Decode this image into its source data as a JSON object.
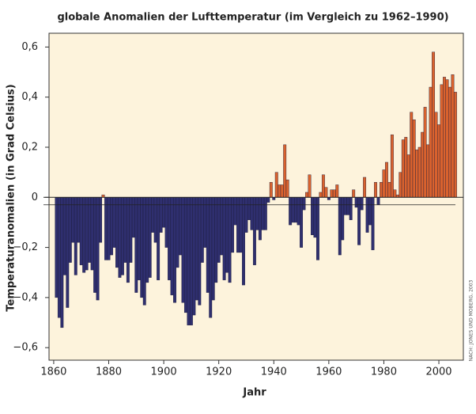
{
  "chart_data": {
    "type": "bar",
    "title": "globale Anomalien der Lufttemperatur (im Vergleich zu 1962–1990)",
    "xlabel": "Jahr",
    "ylabel": "Temperaturanomalien (in Grad Celsius)",
    "source": "NACH: JONES UND MOBERG, 2003",
    "x": [
      1861,
      1862,
      1863,
      1864,
      1865,
      1866,
      1867,
      1868,
      1869,
      1870,
      1871,
      1872,
      1873,
      1874,
      1875,
      1876,
      1877,
      1878,
      1879,
      1880,
      1881,
      1882,
      1883,
      1884,
      1885,
      1886,
      1887,
      1888,
      1889,
      1890,
      1891,
      1892,
      1893,
      1894,
      1895,
      1896,
      1897,
      1898,
      1899,
      1900,
      1901,
      1902,
      1903,
      1904,
      1905,
      1906,
      1907,
      1908,
      1909,
      1910,
      1911,
      1912,
      1913,
      1914,
      1915,
      1916,
      1917,
      1918,
      1919,
      1920,
      1921,
      1922,
      1923,
      1924,
      1925,
      1926,
      1927,
      1928,
      1929,
      1930,
      1931,
      1932,
      1933,
      1934,
      1935,
      1936,
      1937,
      1938,
      1939,
      1940,
      1941,
      1942,
      1943,
      1944,
      1945,
      1946,
      1947,
      1948,
      1949,
      1950,
      1951,
      1952,
      1953,
      1954,
      1955,
      1956,
      1957,
      1958,
      1959,
      1960,
      1961,
      1962,
      1963,
      1964,
      1965,
      1966,
      1967,
      1968,
      1969,
      1970,
      1971,
      1972,
      1973,
      1974,
      1975,
      1976,
      1977,
      1978,
      1979,
      1980,
      1981,
      1982,
      1983,
      1984,
      1985,
      1986,
      1987,
      1988,
      1989,
      1990,
      1991,
      1992,
      1993,
      1994,
      1995,
      1996,
      1997,
      1998,
      1999,
      2000,
      2001,
      2002,
      2003,
      2004,
      2005,
      2006
    ],
    "values": [
      -0.4,
      -0.48,
      -0.52,
      -0.31,
      -0.44,
      -0.26,
      -0.18,
      -0.31,
      -0.18,
      -0.27,
      -0.3,
      -0.29,
      -0.26,
      -0.29,
      -0.38,
      -0.41,
      -0.18,
      0.01,
      -0.25,
      -0.25,
      -0.23,
      -0.2,
      -0.28,
      -0.32,
      -0.31,
      -0.26,
      -0.34,
      -0.26,
      -0.16,
      -0.38,
      -0.33,
      -0.4,
      -0.43,
      -0.34,
      -0.32,
      -0.14,
      -0.18,
      -0.33,
      -0.14,
      -0.12,
      -0.2,
      -0.33,
      -0.39,
      -0.42,
      -0.28,
      -0.23,
      -0.42,
      -0.46,
      -0.51,
      -0.51,
      -0.47,
      -0.41,
      -0.43,
      -0.26,
      -0.2,
      -0.38,
      -0.48,
      -0.41,
      -0.34,
      -0.26,
      -0.23,
      -0.33,
      -0.3,
      -0.34,
      -0.22,
      -0.11,
      -0.22,
      -0.22,
      -0.35,
      -0.14,
      -0.09,
      -0.13,
      -0.27,
      -0.13,
      -0.17,
      -0.13,
      -0.13,
      -0.02,
      0.06,
      -0.01,
      0.1,
      0.05,
      0.05,
      0.21,
      0.07,
      -0.11,
      -0.1,
      -0.1,
      -0.11,
      -0.2,
      -0.05,
      0.02,
      0.09,
      -0.15,
      -0.16,
      -0.25,
      0.02,
      0.09,
      0.04,
      -0.01,
      0.03,
      0.03,
      0.05,
      -0.23,
      -0.17,
      -0.07,
      -0.07,
      -0.09,
      0.03,
      -0.04,
      -0.19,
      -0.05,
      0.08,
      -0.14,
      -0.11,
      -0.21,
      0.06,
      -0.03,
      0.06,
      0.11,
      0.14,
      0.06,
      0.25,
      0.03,
      0.01,
      0.1,
      0.23,
      0.24,
      0.17,
      0.34,
      0.31,
      0.19,
      0.2,
      0.26,
      0.36,
      0.21,
      0.44,
      0.58,
      0.34,
      0.29,
      0.45,
      0.48,
      0.47,
      0.44,
      0.49,
      0.42
    ],
    "positive_color": "#d9622e",
    "negative_color": "#2f2f6f",
    "reference_line": -0.03,
    "xlim": [
      1858.3,
      2008.9
    ],
    "xticks": [
      1860,
      1880,
      1900,
      1920,
      1940,
      1960,
      1980,
      2000
    ],
    "ylim": [
      -0.65,
      0.655
    ],
    "yticks": [
      {
        "value": 0.6,
        "label": "0,6"
      },
      {
        "value": 0.4,
        "label": "0,4"
      },
      {
        "value": 0.2,
        "label": "0,2"
      },
      0,
      {
        "value": -0.2,
        "label": "−0,2"
      },
      {
        "value": -0.4,
        "label": "−0,4"
      },
      {
        "value": -0.6,
        "label": "−0,6"
      }
    ],
    "background": "#fdf3dc"
  }
}
